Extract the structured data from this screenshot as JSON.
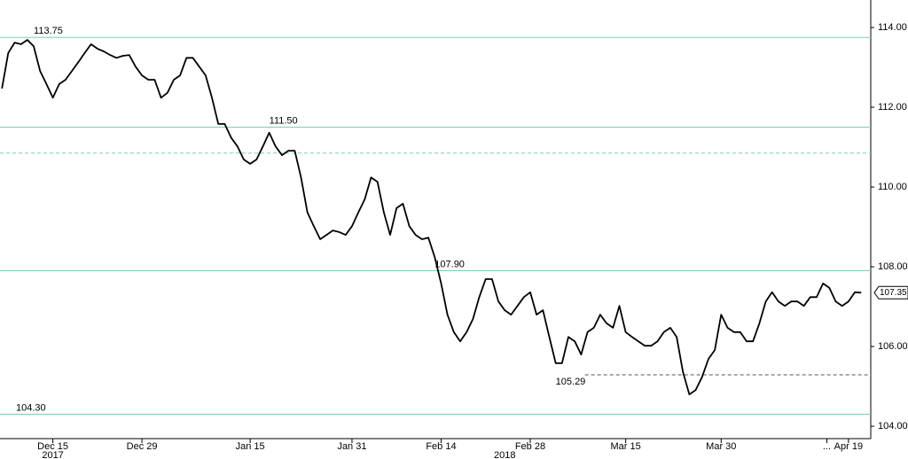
{
  "chart_data": {
    "type": "line",
    "color": "#000000",
    "ref_color": "#7fcfae",
    "axis_side": "right",
    "x": [
      -8,
      -7,
      -6,
      -5,
      -4,
      -3,
      -2,
      -1,
      0,
      1,
      2,
      3,
      4,
      5,
      6,
      7,
      8,
      9,
      10,
      11,
      12,
      13,
      14,
      15,
      16,
      17,
      18,
      19,
      20,
      21,
      22,
      23,
      24,
      25,
      26,
      27,
      28,
      29,
      30,
      31,
      32,
      33,
      34,
      35,
      36,
      37,
      38,
      39,
      40,
      41,
      42,
      43,
      44,
      45,
      46,
      47,
      48,
      49,
      50,
      51,
      52,
      53,
      54,
      55,
      56,
      57,
      58,
      59,
      60,
      61,
      62,
      63,
      64,
      65,
      66,
      67,
      68,
      69,
      70,
      71,
      72,
      73,
      74,
      75,
      76,
      77,
      78,
      79,
      80,
      81,
      82,
      83,
      84,
      85,
      86,
      87,
      88,
      89,
      90,
      91,
      92,
      93,
      94,
      95,
      96,
      97,
      98,
      99,
      100,
      101,
      102,
      103,
      104,
      105,
      106,
      107,
      108,
      109,
      110,
      111,
      112,
      113,
      114,
      115,
      116,
      117,
      118,
      119,
      120,
      121,
      122,
      123,
      124,
      125,
      126,
      127
    ],
    "values": [
      112.47,
      113.36,
      113.62,
      113.58,
      113.69,
      113.53,
      112.91,
      112.58,
      112.24,
      112.58,
      112.69,
      112.91,
      113.13,
      113.36,
      113.58,
      113.47,
      113.4,
      113.31,
      113.24,
      113.29,
      113.31,
      113.02,
      112.8,
      112.69,
      112.69,
      112.24,
      112.36,
      112.69,
      112.8,
      113.24,
      113.24,
      113.02,
      112.8,
      112.24,
      111.58,
      111.58,
      111.24,
      111.02,
      110.69,
      110.58,
      110.69,
      111.02,
      111.36,
      111.02,
      110.8,
      110.91,
      110.91,
      110.24,
      109.36,
      109.02,
      108.69,
      108.8,
      108.91,
      108.87,
      108.8,
      109.02,
      109.36,
      109.69,
      110.24,
      110.13,
      109.36,
      108.8,
      109.47,
      109.58,
      109.02,
      108.8,
      108.69,
      108.73,
      108.24,
      107.58,
      106.8,
      106.36,
      106.13,
      106.36,
      106.69,
      107.24,
      107.69,
      107.69,
      107.13,
      106.91,
      106.8,
      107.02,
      107.24,
      107.36,
      106.8,
      106.91,
      106.24,
      105.58,
      105.58,
      106.24,
      106.13,
      105.8,
      106.36,
      106.47,
      106.8,
      106.58,
      106.47,
      107.02,
      106.36,
      106.24,
      106.13,
      106.02,
      106.02,
      106.13,
      106.36,
      106.47,
      106.24,
      105.36,
      104.8,
      104.91,
      105.24,
      105.69,
      105.91,
      106.8,
      106.47,
      106.36,
      106.36,
      106.13,
      106.13,
      106.58,
      107.13,
      107.36,
      107.13,
      107.02,
      107.13,
      107.13,
      107.02,
      107.24,
      107.24,
      107.58,
      107.47,
      107.13,
      107.02,
      107.13,
      107.36,
      107.35
    ],
    "last_value": {
      "value": 107.35,
      "label": "107.35"
    },
    "xlim": [
      -8.3,
      128.5
    ],
    "ylim": [
      103.69,
      114.69
    ],
    "xticks": [
      {
        "value": 0,
        "label": "Dec 15"
      },
      {
        "value": 14,
        "label": "Dec 29"
      },
      {
        "value": 31,
        "label": "Jan 15"
      },
      {
        "value": 47,
        "label": "Jan 31"
      },
      {
        "value": 61,
        "label": "Feb 14"
      },
      {
        "value": 75,
        "label": "Feb 28"
      },
      {
        "value": 90,
        "label": "Mar 15"
      },
      {
        "value": 105,
        "label": "Mar 30"
      },
      {
        "value": 121.6,
        "label": "..."
      },
      {
        "value": 125,
        "label": "Apr 19"
      }
    ],
    "year_labels": [
      {
        "value": 0,
        "label": "2017"
      },
      {
        "value": 71,
        "label": "2018"
      }
    ],
    "yticks": [
      {
        "value": 104,
        "label": "104.00"
      },
      {
        "value": 106,
        "label": "106.00"
      },
      {
        "value": 108,
        "label": "108.00"
      },
      {
        "value": 110,
        "label": "110.00"
      },
      {
        "value": 112,
        "label": "112.00"
      },
      {
        "value": 114,
        "label": "114.00"
      }
    ],
    "reference_lines": [
      {
        "value": 113.75,
        "label": "113.75",
        "style": "solid",
        "x": -3
      },
      {
        "value": 111.5,
        "label": "111.50",
        "style": "solid",
        "x": 34
      },
      {
        "value": 110.85,
        "style": "dashed"
      },
      {
        "value": 107.9,
        "label": "107.90",
        "style": "solid",
        "x": 60
      },
      {
        "value": 105.29,
        "label": "105.29",
        "style": "dashed",
        "x": 79
      },
      {
        "value": 104.3,
        "label": "104.30",
        "style": "solid"
      }
    ]
  }
}
